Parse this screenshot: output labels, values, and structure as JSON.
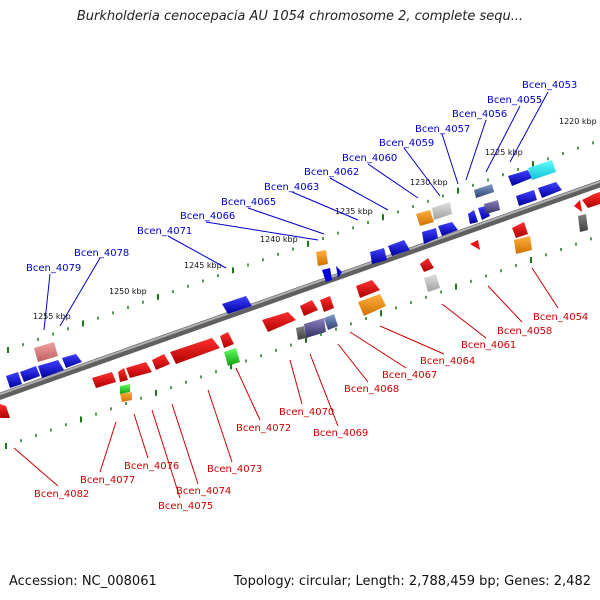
{
  "title": "Burkholderia cenocepacia AU 1054 chromosome 2, complete sequ...",
  "footer": {
    "accession": "Accession: NC_008061",
    "topology": "Topology: circular; Length: 2,788,459 bp; Genes: 2,482"
  },
  "scale_labels": [
    "1220 kbp",
    "1225 kbp",
    "1230 kbp",
    "1235 kbp",
    "1240 kbp",
    "1245 kbp",
    "1250 kbp",
    "1255 kbp"
  ],
  "genes_top": [
    "Bcen_4053",
    "Bcen_4055",
    "Bcen_4056",
    "Bcen_4057",
    "Bcen_4059",
    "Bcen_4060",
    "Bcen_4062",
    "Bcen_4063",
    "Bcen_4065",
    "Bcen_4066",
    "Bcen_4071",
    "Bcen_4078",
    "Bcen_4079"
  ],
  "genes_bottom": [
    "Bcen_4054",
    "Bcen_4058",
    "Bcen_4061",
    "Bcen_4064",
    "Bcen_4067",
    "Bcen_4068",
    "Bcen_4070",
    "Bcen_4069",
    "Bcen_4072",
    "Bcen_4073",
    "Bcen_4076",
    "Bcen_4074",
    "Bcen_4077",
    "Bcen_4075",
    "Bcen_4082"
  ],
  "colors": {
    "forward": "#0000cc",
    "reverse": "#cc0000",
    "backbone": "#888888",
    "tick": "#1a7a1a"
  }
}
